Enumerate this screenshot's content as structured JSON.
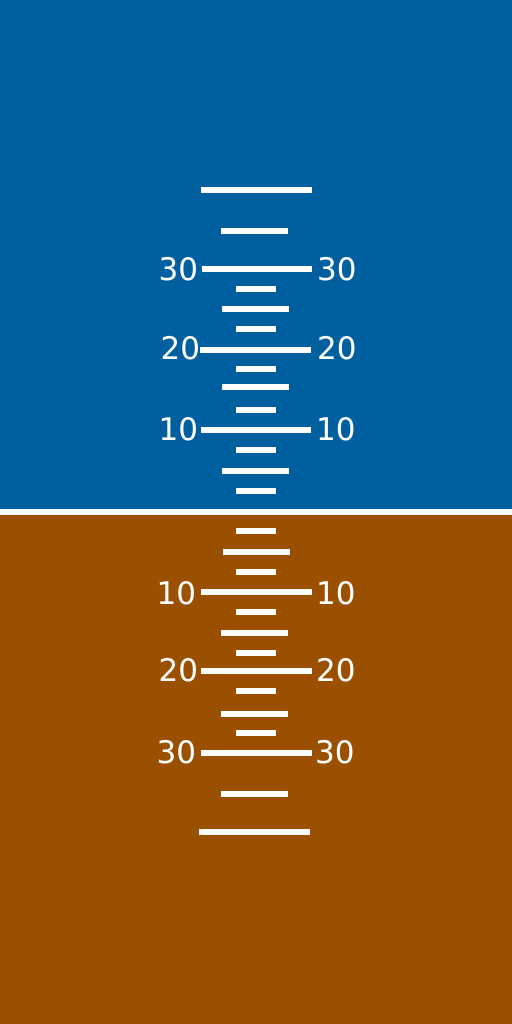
{
  "colors": {
    "sky": "#005f9e",
    "ground": "#9b5000",
    "horizon": "#ffffff",
    "markings": "#ffffff"
  },
  "pitch_ladder": {
    "labels_up": [
      "30",
      "20",
      "10"
    ],
    "labels_down": [
      "10",
      "20",
      "30"
    ]
  }
}
